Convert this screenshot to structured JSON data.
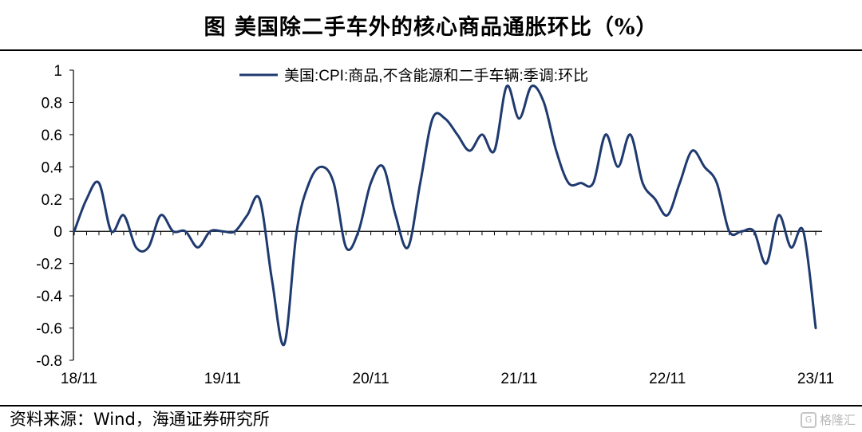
{
  "header": {
    "title": "图  美国除二手车外的核心商品通胀环比（%）"
  },
  "footer": {
    "source": "资料来源：Wind，海通证券研究所",
    "watermark": "格隆汇"
  },
  "chart_data": {
    "type": "line",
    "title": "",
    "xlabel": "",
    "ylabel": "",
    "ylim": [
      -0.8,
      1
    ],
    "yticks": [
      "1",
      "0.8",
      "0.6",
      "0.4",
      "0.2",
      "0",
      "-0.2",
      "-0.4",
      "-0.6",
      "-0.8"
    ],
    "xtick_labels": [
      "18/11",
      "19/11",
      "20/11",
      "21/11",
      "22/11",
      "23/11"
    ],
    "legend_position": "top-center",
    "grid": false,
    "colors": {
      "series": "#1f3a6e",
      "axis": "#000000"
    },
    "series": [
      {
        "name": "美国:CPI:商品,不含能源和二手车辆:季调:环比",
        "x": [
          "2018-11",
          "2018-12",
          "2019-01",
          "2019-02",
          "2019-03",
          "2019-04",
          "2019-05",
          "2019-06",
          "2019-07",
          "2019-08",
          "2019-09",
          "2019-10",
          "2019-11",
          "2019-12",
          "2020-01",
          "2020-02",
          "2020-03",
          "2020-04",
          "2020-05",
          "2020-06",
          "2020-07",
          "2020-08",
          "2020-09",
          "2020-10",
          "2020-11",
          "2020-12",
          "2021-01",
          "2021-02",
          "2021-03",
          "2021-04",
          "2021-05",
          "2021-06",
          "2021-07",
          "2021-08",
          "2021-09",
          "2021-10",
          "2021-11",
          "2021-12",
          "2022-01",
          "2022-02",
          "2022-03",
          "2022-04",
          "2022-05",
          "2022-06",
          "2022-07",
          "2022-08",
          "2022-09",
          "2022-10",
          "2022-11",
          "2022-12",
          "2023-01",
          "2023-02",
          "2023-03",
          "2023-04",
          "2023-05",
          "2023-06",
          "2023-07",
          "2023-08",
          "2023-09",
          "2023-10",
          "2023-11"
        ],
        "values": [
          0.0,
          0.2,
          0.3,
          0.0,
          0.1,
          -0.1,
          -0.1,
          0.1,
          0.0,
          0.0,
          -0.1,
          0.0,
          0.0,
          0.0,
          0.1,
          0.2,
          -0.3,
          -0.7,
          0.0,
          0.3,
          0.4,
          0.3,
          -0.1,
          0.0,
          0.3,
          0.4,
          0.1,
          -0.1,
          0.3,
          0.7,
          0.7,
          0.6,
          0.5,
          0.6,
          0.5,
          0.9,
          0.7,
          0.9,
          0.8,
          0.5,
          0.3,
          0.3,
          0.3,
          0.6,
          0.4,
          0.6,
          0.3,
          0.2,
          0.1,
          0.3,
          0.5,
          0.4,
          0.3,
          0.0,
          0.0,
          0.0,
          -0.2,
          0.1,
          -0.1,
          0.0,
          -0.6
        ]
      }
    ]
  }
}
